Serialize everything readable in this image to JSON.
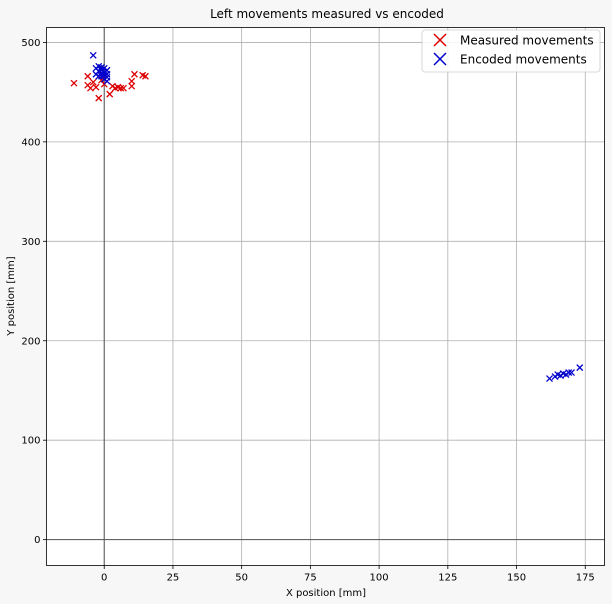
{
  "chart_data": {
    "type": "scatter",
    "title": "Left movements measured vs encoded",
    "xlabel": "X position [mm]",
    "ylabel": "Y position [mm]",
    "xlim": [
      -21,
      182
    ],
    "ylim": [
      -26,
      515
    ],
    "xticks": [
      0,
      25,
      50,
      75,
      100,
      125,
      150,
      175
    ],
    "yticks": [
      0,
      100,
      200,
      300,
      400,
      500
    ],
    "grid": true,
    "legend_position": "top-right",
    "series": [
      {
        "name": "Measured movements",
        "color": "#dd0000",
        "marker": "x",
        "points": [
          [
            -11,
            459
          ],
          [
            -6,
            466
          ],
          [
            -6,
            457
          ],
          [
            -5,
            454
          ],
          [
            -4,
            460
          ],
          [
            -3,
            455
          ],
          [
            -2,
            444
          ],
          [
            -1,
            462
          ],
          [
            0,
            458
          ],
          [
            2,
            448
          ],
          [
            3,
            456
          ],
          [
            4,
            454
          ],
          [
            5,
            455
          ],
          [
            6,
            454
          ],
          [
            7,
            454
          ],
          [
            10,
            461
          ],
          [
            10,
            456
          ],
          [
            11,
            468
          ],
          [
            14,
            467
          ],
          [
            15,
            466
          ]
        ]
      },
      {
        "name": "Encoded movements",
        "color": "#0000cc",
        "marker": "x",
        "points": [
          [
            -4,
            487
          ],
          [
            -3,
            474
          ],
          [
            -3,
            468
          ],
          [
            -2,
            476
          ],
          [
            -2,
            471
          ],
          [
            -2,
            466
          ],
          [
            -1,
            475
          ],
          [
            -1,
            472
          ],
          [
            -1,
            469
          ],
          [
            -1,
            466
          ],
          [
            0,
            474
          ],
          [
            0,
            470
          ],
          [
            0,
            467
          ],
          [
            0,
            463
          ],
          [
            1,
            472
          ],
          [
            1,
            468
          ],
          [
            1,
            465
          ],
          [
            1,
            461
          ],
          [
            162,
            162
          ],
          [
            164,
            164
          ],
          [
            165,
            166
          ],
          [
            166,
            165
          ],
          [
            167,
            167
          ],
          [
            168,
            166
          ],
          [
            169,
            168
          ],
          [
            170,
            168
          ],
          [
            173,
            173
          ]
        ]
      }
    ]
  }
}
